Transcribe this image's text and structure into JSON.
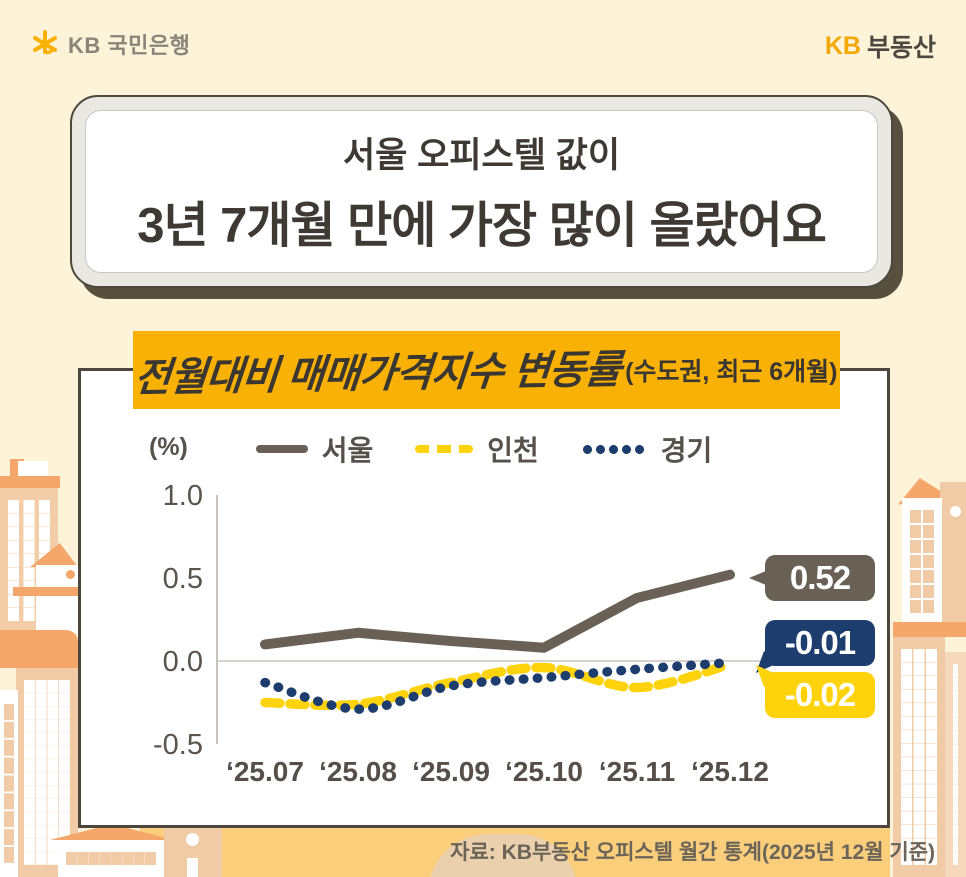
{
  "header": {
    "bank_logo_text": "KB 국민은행",
    "brand_kb": "KB",
    "brand_text": "부동산"
  },
  "title": {
    "line1": "서울 오피스텔 값이",
    "line2": "3년 7개월 만에 가장 많이 올랐어요"
  },
  "chart_banner": {
    "title": "전월대비 매매가격지수 변동률",
    "subtitle": "(수도권, 최근 6개월)"
  },
  "chart_data": {
    "type": "line",
    "unit_label": "(%)",
    "categories": [
      "‘25.07",
      "‘25.08",
      "‘25.09",
      "‘25.10",
      "‘25.11",
      "‘25.12"
    ],
    "y_ticks": [
      "1.0",
      "0.5",
      "0.0",
      "-0.5"
    ],
    "ylim": [
      -0.5,
      1.0
    ],
    "grid": "zero-line-only",
    "legend_position": "top",
    "series": [
      {
        "name": "서울",
        "style": "solid",
        "color": "#6A6156",
        "values": [
          0.1,
          0.17,
          0.12,
          0.08,
          0.38,
          0.52
        ],
        "end_label": "0.52"
      },
      {
        "name": "인천",
        "style": "dashed",
        "color": "#FFD30C",
        "values": [
          -0.25,
          -0.26,
          -0.13,
          -0.04,
          -0.16,
          -0.02
        ],
        "end_label": "-0.02"
      },
      {
        "name": "경기",
        "style": "dotted",
        "color": "#1D3D6E",
        "values": [
          -0.13,
          -0.29,
          -0.15,
          -0.1,
          -0.05,
          -0.01
        ],
        "end_label": "-0.01"
      }
    ]
  },
  "footer": {
    "source": "자료: KB부동산 오피스텔 월간 통계(2025년 12월 기준)"
  },
  "colors": {
    "background": "#FCF3D8",
    "banner": "#F8B104",
    "brand_orange": "#F5A703",
    "seoul": "#6A6156",
    "incheon": "#FFD30C",
    "gyeonggi": "#1D3D6E"
  }
}
